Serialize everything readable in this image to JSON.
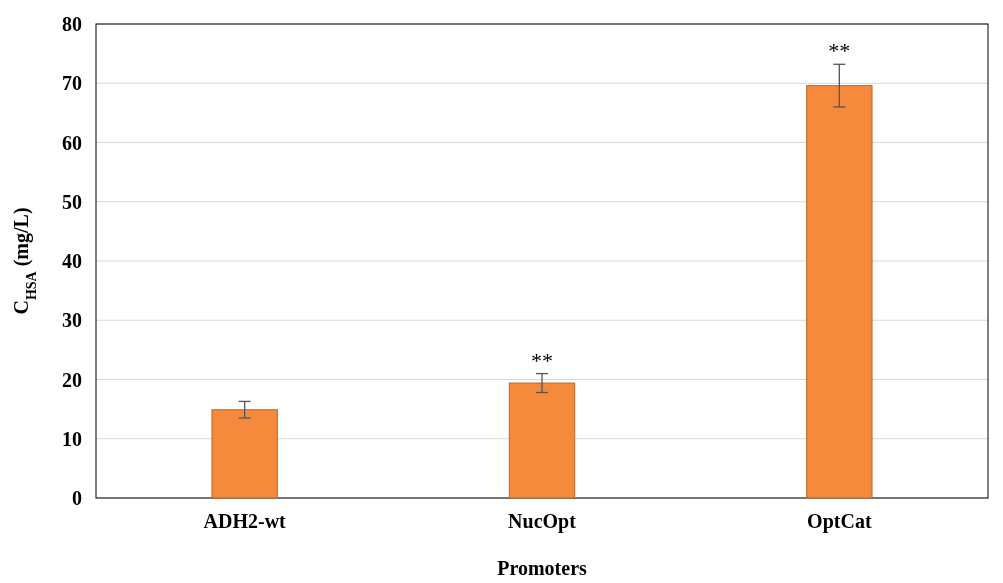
{
  "chart_data": {
    "type": "bar",
    "xlabel": "Promoters",
    "ylabel": "C$_{HSA}$ (mg/L)",
    "categories": [
      "ADH2-wt",
      "NucOpt",
      "OptCat"
    ],
    "values": [
      14.9,
      19.4,
      69.6
    ],
    "errors": [
      1.4,
      1.6,
      3.6
    ],
    "color": "#f58a3c",
    "ylim": [
      0,
      80
    ],
    "yticks": [
      0,
      10,
      20,
      30,
      40,
      50,
      60,
      70,
      80
    ],
    "grid": "y",
    "annotations": [
      {
        "text": "**",
        "x": "NucOpt",
        "y": 21
      },
      {
        "text": "**",
        "x": "OptCat",
        "y": 73.2
      }
    ]
  }
}
